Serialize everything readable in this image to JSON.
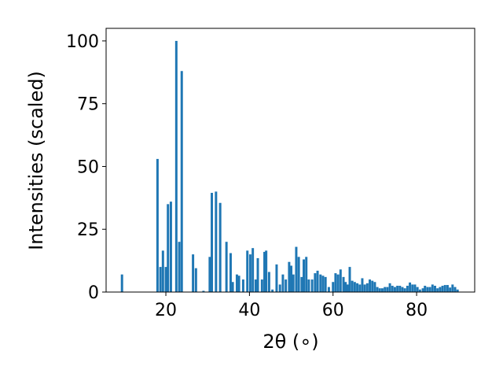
{
  "chart_data": {
    "type": "bar",
    "xlabel": "2θ (∘)",
    "ylabel": "Intensities (scaled)",
    "color": "#1f77b4",
    "xlim": [
      5.7,
      93.9
    ],
    "ylim": [
      0,
      105
    ],
    "xticks": [
      20,
      40,
      60,
      80
    ],
    "yticks": [
      0,
      25,
      50,
      75,
      100
    ],
    "x": [
      9.5,
      18,
      18.7,
      19.3,
      20,
      20.5,
      21.2,
      22.5,
      23.2,
      23.8,
      26.5,
      27.2,
      29,
      30.5,
      31,
      32,
      33,
      34.5,
      35.5,
      36,
      37,
      37.5,
      38.5,
      39.5,
      40.2,
      40.8,
      41.5,
      42,
      43,
      43.6,
      44,
      44.7,
      45.5,
      46.5,
      47.3,
      48,
      48.7,
      49.5,
      50,
      50.5,
      51.2,
      51.8,
      52.5,
      53,
      53.6,
      54.2,
      55,
      55.7,
      56.3,
      57,
      57.6,
      58.2,
      59,
      60,
      60.6,
      61.2,
      61.8,
      62.5,
      63,
      63.5,
      64,
      64.6,
      65.2,
      65.8,
      66.4,
      67,
      67.6,
      68.2,
      68.8,
      69.4,
      70,
      70.6,
      71.2,
      71.8,
      72.4,
      73,
      73.6,
      74.2,
      74.8,
      75.4,
      76,
      76.6,
      77.2,
      77.8,
      78.4,
      79,
      79.6,
      80.2,
      80.8,
      81.5,
      82,
      82.6,
      83.2,
      83.8,
      84.4,
      85,
      85.6,
      86.2,
      86.8,
      87.4,
      88,
      88.6,
      89.2,
      89.8
    ],
    "values": [
      7,
      53,
      10,
      16.5,
      10,
      35,
      36,
      100,
      20,
      88,
      15,
      9.5,
      0.5,
      14,
      39.5,
      40,
      35.5,
      20,
      15.5,
      4,
      7,
      6.5,
      5,
      16.5,
      15,
      17.5,
      5,
      13.5,
      5,
      16,
      16.5,
      8,
      1,
      11,
      3,
      7,
      5,
      12,
      10.5,
      7,
      18,
      14,
      6,
      13,
      14,
      5,
      5,
      7.5,
      8.5,
      7,
      6.5,
      6,
      2,
      4,
      7.5,
      7,
      9,
      6,
      4,
      3,
      10,
      4.5,
      4,
      3.5,
      3,
      5.5,
      3,
      3.5,
      5,
      4.5,
      4,
      2,
      1.5,
      1.5,
      2,
      2,
      3.5,
      2.5,
      2,
      2.5,
      2.5,
      2,
      1.5,
      2.5,
      3.8,
      3,
      3,
      2,
      1,
      1.5,
      2.5,
      2,
      2,
      3,
      2.5,
      1.5,
      2,
      2.5,
      2.8,
      2.8,
      1.8,
      3,
      2,
      1
    ]
  }
}
